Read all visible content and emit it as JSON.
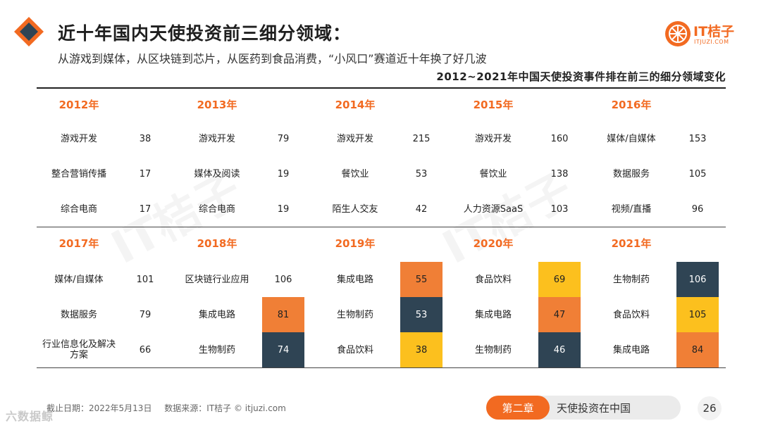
{
  "header": {
    "title": "近十年国内天使投资前三细分领域：",
    "subtitle": "从游戏到媒体，从区块链到芯片，从医药到食品消费，“小风口”赛道近十年换了好几波"
  },
  "logo": {
    "name": "IT桔子",
    "url": "ITJUZI.COM"
  },
  "table": {
    "caption": "2012~2021年中国天使投资事件排在前三的细分领域变化",
    "years": [
      {
        "year": "2012年",
        "rows": [
          {
            "cat": "游戏开发",
            "val": "38"
          },
          {
            "cat": "整合营销传播",
            "val": "17"
          },
          {
            "cat": "综合电商",
            "val": "17"
          }
        ]
      },
      {
        "year": "2013年",
        "rows": [
          {
            "cat": "游戏开发",
            "val": "79"
          },
          {
            "cat": "媒体及阅读",
            "val": "19"
          },
          {
            "cat": "综合电商",
            "val": "19"
          }
        ]
      },
      {
        "year": "2014年",
        "rows": [
          {
            "cat": "游戏开发",
            "val": "215"
          },
          {
            "cat": "餐饮业",
            "val": "53"
          },
          {
            "cat": "陌生人交友",
            "val": "42"
          }
        ]
      },
      {
        "year": "2015年",
        "rows": [
          {
            "cat": "游戏开发",
            "val": "160"
          },
          {
            "cat": "餐饮业",
            "val": "138"
          },
          {
            "cat": "人力资源SaaS",
            "val": "103"
          }
        ]
      },
      {
        "year": "2016年",
        "rows": [
          {
            "cat": "媒体/自媒体",
            "val": "153"
          },
          {
            "cat": "数据服务",
            "val": "105"
          },
          {
            "cat": "视频/直播",
            "val": "96"
          }
        ]
      },
      {
        "year": "2017年",
        "rows": [
          {
            "cat": "媒体/自媒体",
            "val": "101"
          },
          {
            "cat": "数据服务",
            "val": "79"
          },
          {
            "cat": "行业信息化及解决方案",
            "val": "66"
          }
        ]
      },
      {
        "year": "2018年",
        "rows": [
          {
            "cat": "区块链行业应用",
            "val": "106"
          },
          {
            "cat": "集成电路",
            "val": "81",
            "color": "#f07f36"
          },
          {
            "cat": "生物制药",
            "val": "74",
            "color": "#2f4454"
          }
        ]
      },
      {
        "year": "2019年",
        "rows": [
          {
            "cat": "集成电路",
            "val": "55",
            "color": "#f07f36"
          },
          {
            "cat": "生物制药",
            "val": "53",
            "color": "#2f4454"
          },
          {
            "cat": "食品饮料",
            "val": "38",
            "color": "#fcc01e"
          }
        ]
      },
      {
        "year": "2020年",
        "rows": [
          {
            "cat": "食品饮料",
            "val": "69",
            "color": "#fcc01e"
          },
          {
            "cat": "集成电路",
            "val": "47",
            "color": "#f07f36"
          },
          {
            "cat": "生物制药",
            "val": "46",
            "color": "#2f4454"
          }
        ]
      },
      {
        "year": "2021年",
        "rows": [
          {
            "cat": "生物制药",
            "val": "106",
            "color": "#2f4454"
          },
          {
            "cat": "食品饮料",
            "val": "105",
            "color": "#fcc01e"
          },
          {
            "cat": "集成电路",
            "val": "84",
            "color": "#f07f36"
          }
        ]
      }
    ]
  },
  "footer": {
    "date_note": "截止日期：2022年5月13日",
    "source_note": "数据来源：IT桔子 © itjuzi.com",
    "chapter_tag": "第二章",
    "chapter_title": "天使投资在中国",
    "page_number": "26",
    "watermark_text": "六数据鲸"
  },
  "colors": {
    "accent": "#f26a21",
    "orange": "#f07f36",
    "navy": "#2f4454",
    "yellow": "#fcc01e"
  }
}
